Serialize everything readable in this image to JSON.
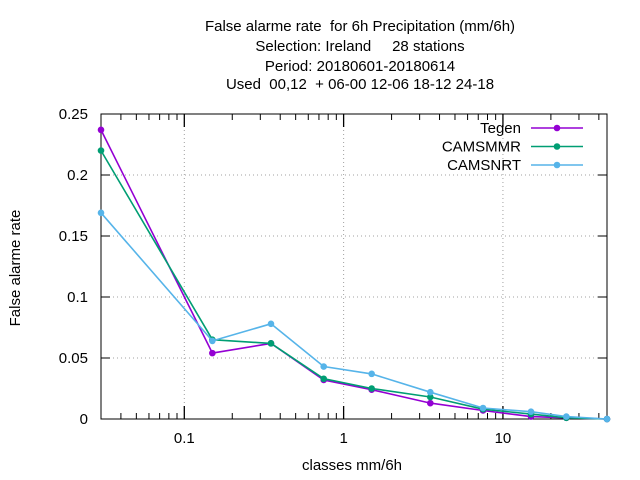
{
  "chart_data": {
    "type": "line",
    "title": [
      "False alarme rate  for 6h Precipitation (mm/6h)",
      "Selection: Ireland     28 stations",
      "Period: 20180601-20180614",
      "Used  00,12  + 06-00 12-06 18-12 24-18"
    ],
    "xlabel": "classes mm/6h",
    "ylabel": "False alarme rate",
    "xscale": "log",
    "xlim": [
      0.03,
      45
    ],
    "ylim": [
      0,
      0.25
    ],
    "x_ticks": [
      0.1,
      1,
      10
    ],
    "x_tick_labels": [
      "0.1",
      "1",
      "10"
    ],
    "y_ticks": [
      0,
      0.05,
      0.1,
      0.15,
      0.2,
      0.25
    ],
    "y_tick_labels": [
      "0",
      "0.05",
      "0.1",
      "0.15",
      "0.2",
      "0.25"
    ],
    "grid": true,
    "legend_position": "top-right",
    "x": [
      0.03,
      0.15,
      0.35,
      0.75,
      1.5,
      3.5,
      7.5,
      15,
      25,
      45
    ],
    "series": [
      {
        "name": "Tegen",
        "color": "#9400d3",
        "marker": "filled-circle",
        "values": [
          0.237,
          0.054,
          0.062,
          0.032,
          0.024,
          0.013,
          0.007,
          0.002,
          0.001,
          0.0
        ]
      },
      {
        "name": "CAMSMMR",
        "color": "#009e73",
        "marker": "filled-circle",
        "values": [
          0.22,
          0.065,
          0.062,
          0.033,
          0.025,
          0.018,
          0.008,
          0.004,
          0.001,
          0.0
        ]
      },
      {
        "name": "CAMSNRT",
        "color": "#56b4e9",
        "marker": "filled-circle",
        "values": [
          0.169,
          0.064,
          0.078,
          0.043,
          0.037,
          0.022,
          0.009,
          0.006,
          0.002,
          0.0
        ]
      }
    ]
  }
}
